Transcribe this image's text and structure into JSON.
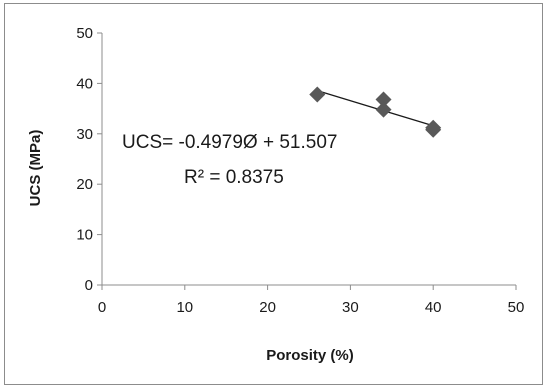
{
  "chart_data": {
    "type": "scatter",
    "title": "",
    "xlabel": "Porosity (%)",
    "ylabel": "UCS (MPa)",
    "xlim": [
      0,
      50
    ],
    "ylim": [
      0,
      50
    ],
    "x_ticks": [
      0,
      10,
      20,
      30,
      40,
      50
    ],
    "y_ticks": [
      0,
      10,
      20,
      30,
      40,
      50
    ],
    "grid": false,
    "legend": "none",
    "marker": "diamond",
    "marker_color": "#595959",
    "trendline_color": "#1a1a1a",
    "series": [
      {
        "points": [
          {
            "x": 26,
            "y": 37.8
          },
          {
            "x": 34,
            "y": 36.8
          },
          {
            "x": 34,
            "y": 34.8
          },
          {
            "x": 40,
            "y": 31.2
          },
          {
            "x": 40,
            "y": 30.8
          }
        ]
      }
    ],
    "trendline": {
      "type": "linear",
      "slope": -0.4979,
      "intercept": 51.507,
      "x_range": [
        26,
        40
      ]
    },
    "annotations": {
      "equation": "UCS= -0.4979Ø + 51.507",
      "r_squared": "R² = 0.8375"
    }
  }
}
